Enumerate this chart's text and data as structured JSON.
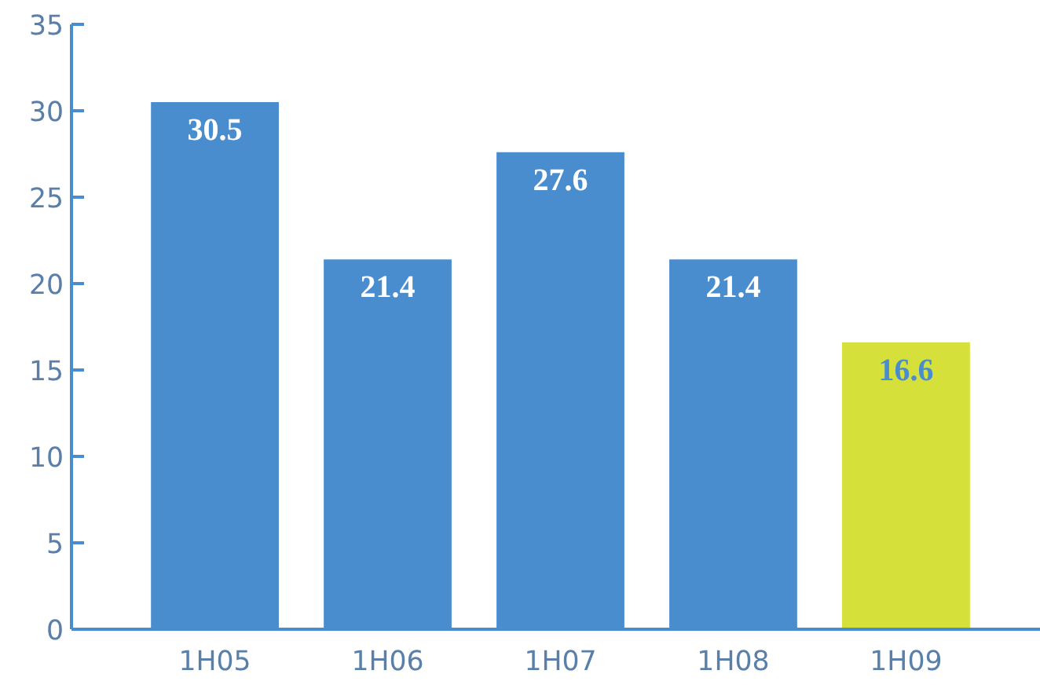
{
  "chart_data": {
    "type": "bar",
    "categories": [
      "1H05",
      "1H06",
      "1H07",
      "1H08",
      "1H09"
    ],
    "values": [
      30.5,
      21.4,
      27.6,
      21.4,
      16.6
    ],
    "colors": [
      "#4a8dcf",
      "#4a8dcf",
      "#4a8dcf",
      "#4a8dcf",
      "#d5e03b"
    ],
    "ylim": [
      0,
      35
    ],
    "yticks": [
      0,
      5,
      10,
      15,
      20,
      25,
      30,
      35
    ],
    "grid": false,
    "data_labels": true
  }
}
